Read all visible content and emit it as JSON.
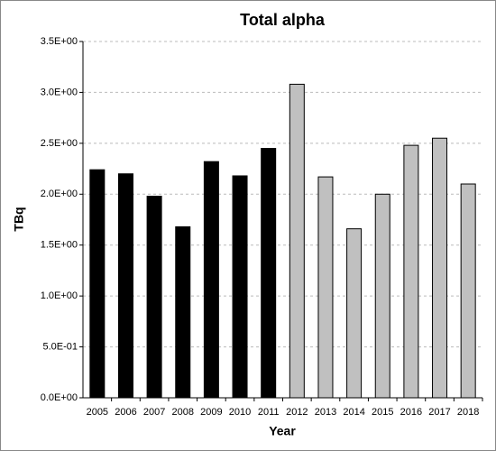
{
  "chart_data": {
    "type": "bar",
    "title": "Total alpha",
    "x_label": "Year",
    "y_label": "TBq",
    "categories": [
      "2005",
      "2006",
      "2007",
      "2008",
      "2009",
      "2010",
      "2011",
      "2012",
      "2013",
      "2014",
      "2015",
      "2016",
      "2017",
      "2018"
    ],
    "values": [
      2.24,
      2.2,
      1.98,
      1.68,
      2.32,
      2.18,
      2.45,
      3.08,
      2.17,
      1.66,
      2.0,
      2.48,
      2.55,
      2.1
    ],
    "colors": [
      "#000000",
      "#000000",
      "#000000",
      "#000000",
      "#000000",
      "#000000",
      "#000000",
      "#c0c0c0",
      "#c0c0c0",
      "#c0c0c0",
      "#c0c0c0",
      "#c0c0c0",
      "#c0c0c0",
      "#c0c0c0"
    ],
    "ylim": [
      0,
      3.5
    ],
    "yticks": [
      {
        "value": 0,
        "label": "0.0E+00"
      },
      {
        "value": 0.5,
        "label": "5.0E-01"
      },
      {
        "value": 1,
        "label": "1.0E+00"
      },
      {
        "value": 1.5,
        "label": "1.5E+00"
      },
      {
        "value": 2,
        "label": "2.0E+00"
      },
      {
        "value": 2.5,
        "label": "2.5E+00"
      },
      {
        "value": 3,
        "label": "3.0E+00"
      },
      {
        "value": 3.5,
        "label": "3.5E+00"
      }
    ],
    "grid": true
  }
}
